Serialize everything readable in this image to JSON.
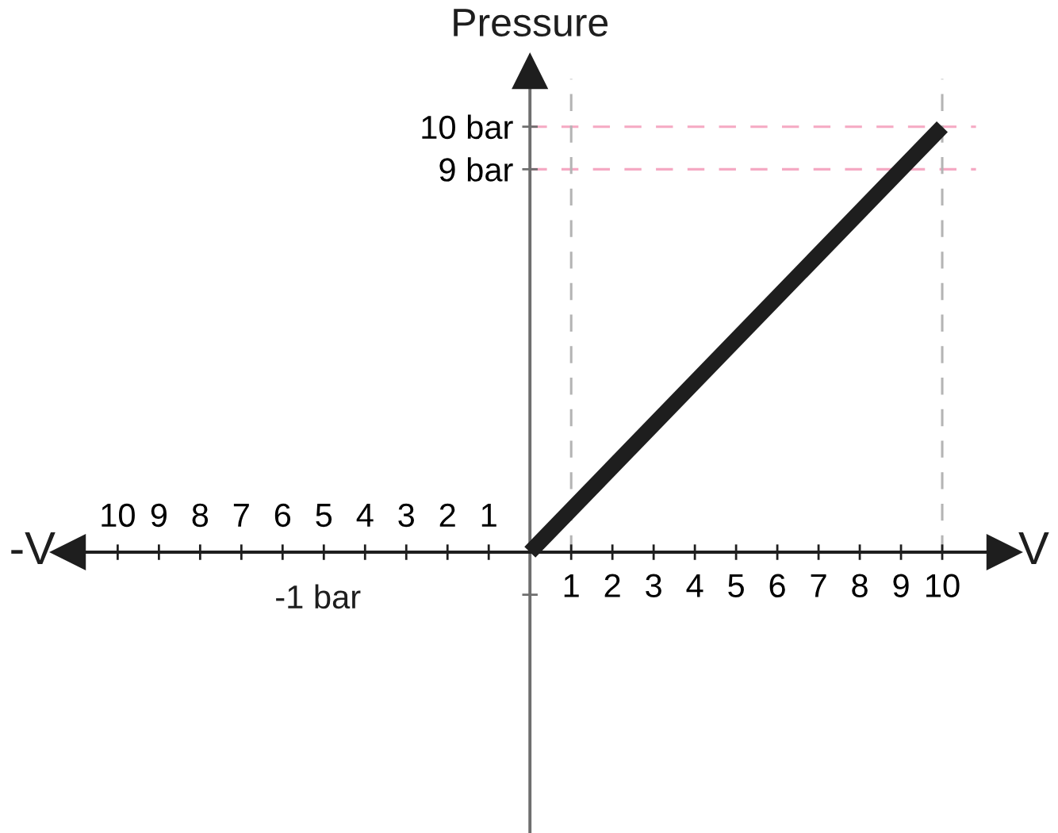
{
  "chart_data": {
    "type": "line",
    "xlabel": "V",
    "ylabel": "Pressure",
    "x": [
      0,
      10
    ],
    "series": [
      {
        "color": "#1e1e1e",
        "values": [
          0,
          10
        ]
      }
    ],
    "xlim": [
      -11.2,
      11.5
    ],
    "ylim": [
      -6.6,
      11.3
    ],
    "xticks": [
      {
        "value": -10,
        "label": "10"
      },
      {
        "value": -9,
        "label": "9"
      },
      {
        "value": -8,
        "label": "8"
      },
      {
        "value": -7,
        "label": "7"
      },
      {
        "value": -6,
        "label": "6"
      },
      {
        "value": -5,
        "label": "5"
      },
      {
        "value": -4,
        "label": "4"
      },
      {
        "value": -3,
        "label": "3"
      },
      {
        "value": -2,
        "label": "2"
      },
      {
        "value": -1,
        "label": "1"
      }
    ],
    "x2lim": [
      -11.2,
      11.5
    ],
    "x2ticks": [
      1,
      2,
      3,
      4,
      5,
      6,
      7,
      8,
      9,
      10
    ],
    "yticks": [
      {
        "value": -1,
        "label": null
      },
      {
        "value": 9,
        "label": "9 bar"
      },
      {
        "value": 10,
        "label": "10 bar"
      }
    ],
    "ref_lines": [
      {
        "axis": "y",
        "value": 10,
        "color": "#f5a9c3",
        "line_style": "dashed"
      },
      {
        "axis": "y",
        "value": 9,
        "color": "#f5a9c3",
        "line_style": "dashed"
      },
      {
        "axis": "x",
        "value": 1,
        "color": "#b4b4b4",
        "line_style": "dashed"
      },
      {
        "axis": "x",
        "value": 10,
        "color": "#b4b4b4",
        "line_style": "dashed"
      }
    ],
    "annotations": [
      "-V",
      "-1 bar"
    ]
  }
}
